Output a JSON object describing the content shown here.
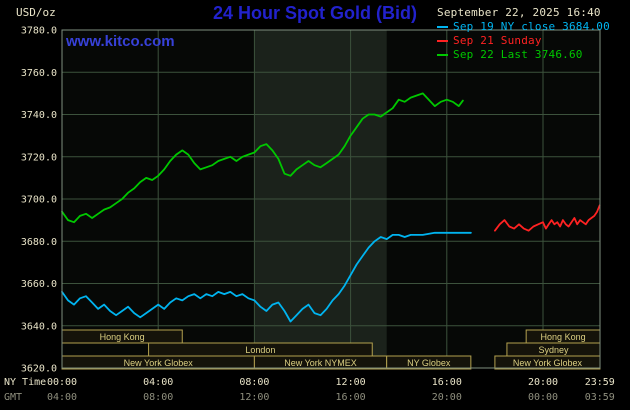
{
  "header": {
    "units": "USD/oz",
    "title": "24 Hour Spot Gold (Bid)",
    "watermark": "www.kitco.com",
    "datetime": "September 22, 2025 16:40"
  },
  "legend": {
    "items": [
      {
        "label": "Sep 19 NY close 3684.00",
        "color": "#00b4f0"
      },
      {
        "label": "Sep 21 Sunday",
        "color": "#ff2222"
      },
      {
        "label": "Sep 22 Last 3746.60",
        "color": "#00c800"
      }
    ]
  },
  "colors": {
    "title_blue": "#2222cc",
    "watermark_blue": "#3741d8",
    "text_light": "#e9e4c8",
    "text_gray": "#8f8f7e",
    "plot_bg": "#060806",
    "band": "#1b221b",
    "grid": "#3c523c",
    "border": "#7f8f7f",
    "session_border": "#b3a14f",
    "session_text": "#dbcf82",
    "session_fill": "#15130a"
  },
  "chart_data": {
    "type": "line",
    "title": "24 Hour Spot Gold (Bid)",
    "ylabel": "USD/oz",
    "ylim": [
      3620,
      3780
    ],
    "ytick_step": 20,
    "xlim_hours": [
      0,
      24
    ],
    "grid": true,
    "legend_position": "top-right",
    "nymex_band_hours": [
      8,
      13.5
    ],
    "x_axis": {
      "row1_label": "NY Time",
      "row2_label": "GMT",
      "ticks": [
        {
          "hour": 0,
          "ny": "00:00",
          "gmt": "04:00"
        },
        {
          "hour": 4,
          "ny": "04:00",
          "gmt": "08:00"
        },
        {
          "hour": 8,
          "ny": "08:00",
          "gmt": "12:00"
        },
        {
          "hour": 12,
          "ny": "12:00",
          "gmt": "16:00"
        },
        {
          "hour": 16,
          "ny": "16:00",
          "gmt": "20:00"
        },
        {
          "hour": 20,
          "ny": "20:00",
          "gmt": "00:00"
        },
        {
          "hour": 23.983,
          "ny": "23:59",
          "gmt": "03:59"
        }
      ]
    },
    "series": [
      {
        "id": "sep19",
        "name": "Sep 19 NY close 3684.00",
        "color": "#00b4f0",
        "points": [
          [
            0,
            3656
          ],
          [
            0.25,
            3652
          ],
          [
            0.5,
            3650
          ],
          [
            0.75,
            3653
          ],
          [
            1,
            3654
          ],
          [
            1.25,
            3651
          ],
          [
            1.5,
            3648
          ],
          [
            1.75,
            3650
          ],
          [
            2,
            3647
          ],
          [
            2.25,
            3645
          ],
          [
            2.5,
            3647
          ],
          [
            2.75,
            3649
          ],
          [
            3,
            3646
          ],
          [
            3.25,
            3644
          ],
          [
            3.5,
            3646
          ],
          [
            3.75,
            3648
          ],
          [
            4,
            3650
          ],
          [
            4.25,
            3648
          ],
          [
            4.5,
            3651
          ],
          [
            4.75,
            3653
          ],
          [
            5,
            3652
          ],
          [
            5.25,
            3654
          ],
          [
            5.5,
            3655
          ],
          [
            5.75,
            3653
          ],
          [
            6,
            3655
          ],
          [
            6.25,
            3654
          ],
          [
            6.5,
            3656
          ],
          [
            6.75,
            3655
          ],
          [
            7,
            3656
          ],
          [
            7.25,
            3654
          ],
          [
            7.5,
            3655
          ],
          [
            7.75,
            3653
          ],
          [
            8,
            3652
          ],
          [
            8.25,
            3649
          ],
          [
            8.5,
            3647
          ],
          [
            8.75,
            3650
          ],
          [
            9,
            3651
          ],
          [
            9.25,
            3647
          ],
          [
            9.5,
            3642
          ],
          [
            9.75,
            3645
          ],
          [
            10,
            3648
          ],
          [
            10.25,
            3650
          ],
          [
            10.5,
            3646
          ],
          [
            10.75,
            3645
          ],
          [
            11,
            3648
          ],
          [
            11.25,
            3652
          ],
          [
            11.5,
            3655
          ],
          [
            11.75,
            3659
          ],
          [
            12,
            3664
          ],
          [
            12.25,
            3669
          ],
          [
            12.5,
            3673
          ],
          [
            12.75,
            3677
          ],
          [
            13,
            3680
          ],
          [
            13.25,
            3682
          ],
          [
            13.5,
            3681
          ],
          [
            13.75,
            3683
          ],
          [
            14,
            3683
          ],
          [
            14.25,
            3682
          ],
          [
            14.5,
            3683
          ],
          [
            15,
            3683
          ],
          [
            15.5,
            3684
          ],
          [
            16,
            3684
          ],
          [
            16.5,
            3684
          ],
          [
            17,
            3684
          ]
        ]
      },
      {
        "id": "sep21",
        "name": "Sep 21 Sunday",
        "color": "#ff2222",
        "points": [
          [
            18,
            3685
          ],
          [
            18.2,
            3688
          ],
          [
            18.4,
            3690
          ],
          [
            18.6,
            3687
          ],
          [
            18.8,
            3686
          ],
          [
            19,
            3688
          ],
          [
            19.2,
            3686
          ],
          [
            19.4,
            3685
          ],
          [
            19.6,
            3687
          ],
          [
            19.8,
            3688
          ],
          [
            20,
            3689
          ],
          [
            20.2,
            3686
          ],
          [
            20.4,
            3688
          ],
          [
            20.6,
            3690
          ],
          [
            20.8,
            3688
          ],
          [
            21,
            3689
          ],
          [
            21.2,
            3687
          ],
          [
            21.4,
            3690
          ],
          [
            21.6,
            3688
          ],
          [
            21.8,
            3687
          ],
          [
            22,
            3689
          ],
          [
            22.2,
            3691
          ],
          [
            22.4,
            3688
          ],
          [
            22.6,
            3690
          ],
          [
            22.8,
            3689
          ],
          [
            23,
            3688
          ],
          [
            23.2,
            3690
          ],
          [
            23.4,
            3691
          ],
          [
            23.6,
            3692
          ],
          [
            23.8,
            3694
          ],
          [
            23.98,
            3697
          ]
        ]
      },
      {
        "id": "sep22",
        "name": "Sep 22 Last 3746.60",
        "color": "#00c800",
        "points": [
          [
            0,
            3694
          ],
          [
            0.25,
            3690
          ],
          [
            0.5,
            3689
          ],
          [
            0.75,
            3692
          ],
          [
            1,
            3693
          ],
          [
            1.25,
            3691
          ],
          [
            1.5,
            3693
          ],
          [
            1.75,
            3695
          ],
          [
            2,
            3696
          ],
          [
            2.25,
            3698
          ],
          [
            2.5,
            3700
          ],
          [
            2.75,
            3703
          ],
          [
            3,
            3705
          ],
          [
            3.25,
            3708
          ],
          [
            3.5,
            3710
          ],
          [
            3.75,
            3709
          ],
          [
            4,
            3711
          ],
          [
            4.25,
            3714
          ],
          [
            4.5,
            3718
          ],
          [
            4.75,
            3721
          ],
          [
            5,
            3723
          ],
          [
            5.25,
            3721
          ],
          [
            5.5,
            3717
          ],
          [
            5.75,
            3714
          ],
          [
            6,
            3715
          ],
          [
            6.25,
            3716
          ],
          [
            6.5,
            3718
          ],
          [
            6.75,
            3719
          ],
          [
            7,
            3720
          ],
          [
            7.25,
            3718
          ],
          [
            7.5,
            3720
          ],
          [
            7.75,
            3721
          ],
          [
            8,
            3722
          ],
          [
            8.25,
            3725
          ],
          [
            8.5,
            3726
          ],
          [
            8.75,
            3723
          ],
          [
            9,
            3719
          ],
          [
            9.25,
            3712
          ],
          [
            9.5,
            3711
          ],
          [
            9.75,
            3714
          ],
          [
            10,
            3716
          ],
          [
            10.25,
            3718
          ],
          [
            10.5,
            3716
          ],
          [
            10.75,
            3715
          ],
          [
            11,
            3717
          ],
          [
            11.25,
            3719
          ],
          [
            11.5,
            3721
          ],
          [
            11.75,
            3725
          ],
          [
            12,
            3730
          ],
          [
            12.25,
            3734
          ],
          [
            12.5,
            3738
          ],
          [
            12.75,
            3740
          ],
          [
            13,
            3740
          ],
          [
            13.25,
            3739
          ],
          [
            13.5,
            3741
          ],
          [
            13.75,
            3743
          ],
          [
            14,
            3747
          ],
          [
            14.25,
            3746
          ],
          [
            14.5,
            3748
          ],
          [
            14.75,
            3749
          ],
          [
            15,
            3750
          ],
          [
            15.25,
            3747
          ],
          [
            15.5,
            3744
          ],
          [
            15.75,
            3746
          ],
          [
            16,
            3747
          ],
          [
            16.25,
            3746
          ],
          [
            16.5,
            3744
          ],
          [
            16.67,
            3746.6
          ]
        ]
      }
    ],
    "sessions": [
      {
        "row": 0,
        "label": "Hong Kong",
        "start": 0,
        "end": 5
      },
      {
        "row": 0,
        "label": "Hong Kong",
        "start": 19.3,
        "end": 24
      },
      {
        "row": 1,
        "label": "London",
        "start": 3.6,
        "end": 12.9
      },
      {
        "row": 1,
        "label": "Sydney",
        "start": 18.5,
        "end": 24
      },
      {
        "row": 2,
        "label": "New York Globex",
        "start": 0,
        "end": 8
      },
      {
        "row": 2,
        "label": "New York NYMEX",
        "start": 8,
        "end": 13.5
      },
      {
        "row": 2,
        "label": "NY Globex",
        "start": 13.5,
        "end": 17
      },
      {
        "row": 2,
        "label": "New York Globex",
        "start": 18,
        "end": 24
      }
    ]
  }
}
